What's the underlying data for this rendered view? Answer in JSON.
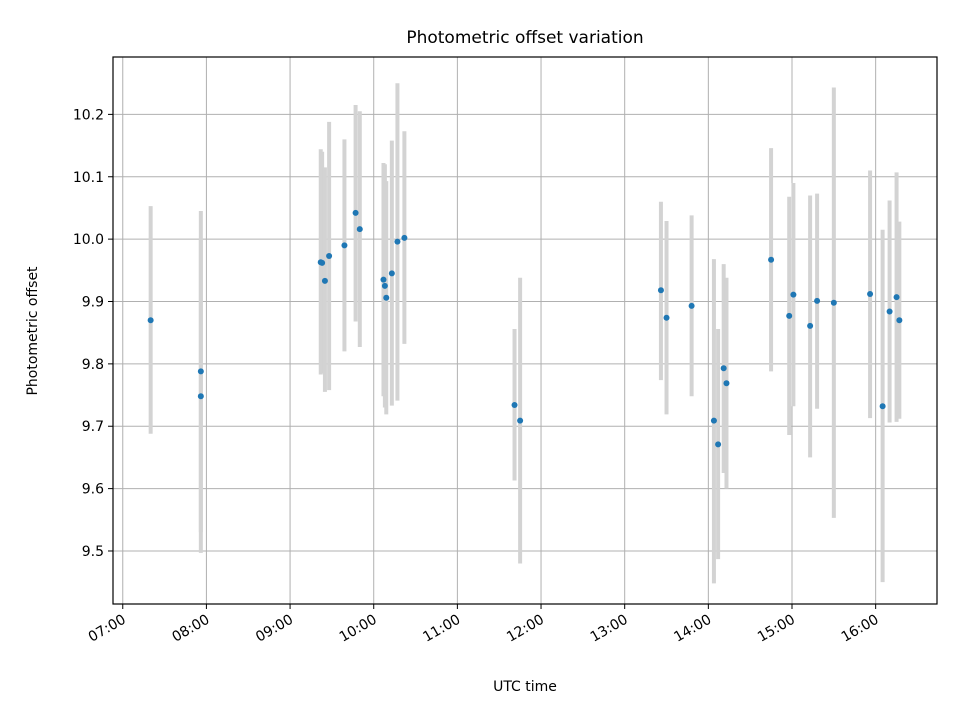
{
  "chart_data": {
    "type": "scatter",
    "title": "Photometric offset variation",
    "xlabel": "UTC time",
    "ylabel": "Photometric offset",
    "x_ticks": [
      "07:00",
      "08:00",
      "09:00",
      "10:00",
      "11:00",
      "12:00",
      "13:00",
      "14:00",
      "15:00",
      "16:00"
    ],
    "y_ticks": [
      "9.5",
      "9.6",
      "9.7",
      "9.8",
      "9.9",
      "10.0",
      "10.1",
      "10.2"
    ],
    "xlim": [
      "06:53",
      "16:44"
    ],
    "ylim": [
      9.415,
      10.292
    ],
    "grid": true,
    "point_color": "#1f77b4",
    "errorbar_color": "#d3d3d3",
    "points": [
      {
        "x": "07:20",
        "y": 9.87,
        "lo": 9.688,
        "hi": 10.053
      },
      {
        "x": "07:56",
        "y": 9.788,
        "lo": 9.53,
        "hi": 10.045
      },
      {
        "x": "07:56",
        "y": 9.748,
        "lo": 9.497,
        "hi": 10.0
      },
      {
        "x": "09:22",
        "y": 9.963,
        "lo": 9.783,
        "hi": 10.144
      },
      {
        "x": "09:23",
        "y": 9.962,
        "lo": 9.785,
        "hi": 10.14
      },
      {
        "x": "09:25",
        "y": 9.933,
        "lo": 9.755,
        "hi": 10.115
      },
      {
        "x": "09:28",
        "y": 9.973,
        "lo": 9.758,
        "hi": 10.188
      },
      {
        "x": "09:39",
        "y": 9.99,
        "lo": 9.82,
        "hi": 10.16
      },
      {
        "x": "09:47",
        "y": 10.042,
        "lo": 9.868,
        "hi": 10.215
      },
      {
        "x": "09:50",
        "y": 10.016,
        "lo": 9.827,
        "hi": 10.205
      },
      {
        "x": "10:07",
        "y": 9.935,
        "lo": 9.748,
        "hi": 10.122
      },
      {
        "x": "10:08",
        "y": 9.925,
        "lo": 9.73,
        "hi": 10.12
      },
      {
        "x": "10:09",
        "y": 9.906,
        "lo": 9.719,
        "hi": 10.093
      },
      {
        "x": "10:13",
        "y": 9.945,
        "lo": 9.733,
        "hi": 10.158
      },
      {
        "x": "10:17",
        "y": 9.996,
        "lo": 9.741,
        "hi": 10.25
      },
      {
        "x": "10:22",
        "y": 10.002,
        "lo": 9.832,
        "hi": 10.173
      },
      {
        "x": "11:41",
        "y": 9.734,
        "lo": 9.613,
        "hi": 9.856
      },
      {
        "x": "11:45",
        "y": 9.709,
        "lo": 9.48,
        "hi": 9.938
      },
      {
        "x": "13:26",
        "y": 9.918,
        "lo": 9.774,
        "hi": 10.06
      },
      {
        "x": "13:30",
        "y": 9.874,
        "lo": 9.719,
        "hi": 10.029
      },
      {
        "x": "13:48",
        "y": 9.893,
        "lo": 9.748,
        "hi": 10.038
      },
      {
        "x": "14:04",
        "y": 9.709,
        "lo": 9.448,
        "hi": 9.968
      },
      {
        "x": "14:07",
        "y": 9.671,
        "lo": 9.487,
        "hi": 9.856
      },
      {
        "x": "14:11",
        "y": 9.793,
        "lo": 9.625,
        "hi": 9.96
      },
      {
        "x": "14:13",
        "y": 9.769,
        "lo": 9.6,
        "hi": 9.938
      },
      {
        "x": "14:45",
        "y": 9.967,
        "lo": 9.788,
        "hi": 10.146
      },
      {
        "x": "14:58",
        "y": 9.877,
        "lo": 9.686,
        "hi": 10.068
      },
      {
        "x": "15:01",
        "y": 9.911,
        "lo": 9.732,
        "hi": 10.09
      },
      {
        "x": "15:13",
        "y": 9.861,
        "lo": 9.65,
        "hi": 10.07
      },
      {
        "x": "15:18",
        "y": 9.901,
        "lo": 9.728,
        "hi": 10.073
      },
      {
        "x": "15:30",
        "y": 9.898,
        "lo": 9.553,
        "hi": 10.243
      },
      {
        "x": "15:56",
        "y": 9.912,
        "lo": 9.713,
        "hi": 10.11
      },
      {
        "x": "16:05",
        "y": 9.732,
        "lo": 9.45,
        "hi": 10.015
      },
      {
        "x": "16:10",
        "y": 9.884,
        "lo": 9.706,
        "hi": 10.062
      },
      {
        "x": "16:15",
        "y": 9.907,
        "lo": 9.707,
        "hi": 10.107
      },
      {
        "x": "16:17",
        "y": 9.87,
        "lo": 9.712,
        "hi": 10.028
      }
    ]
  }
}
